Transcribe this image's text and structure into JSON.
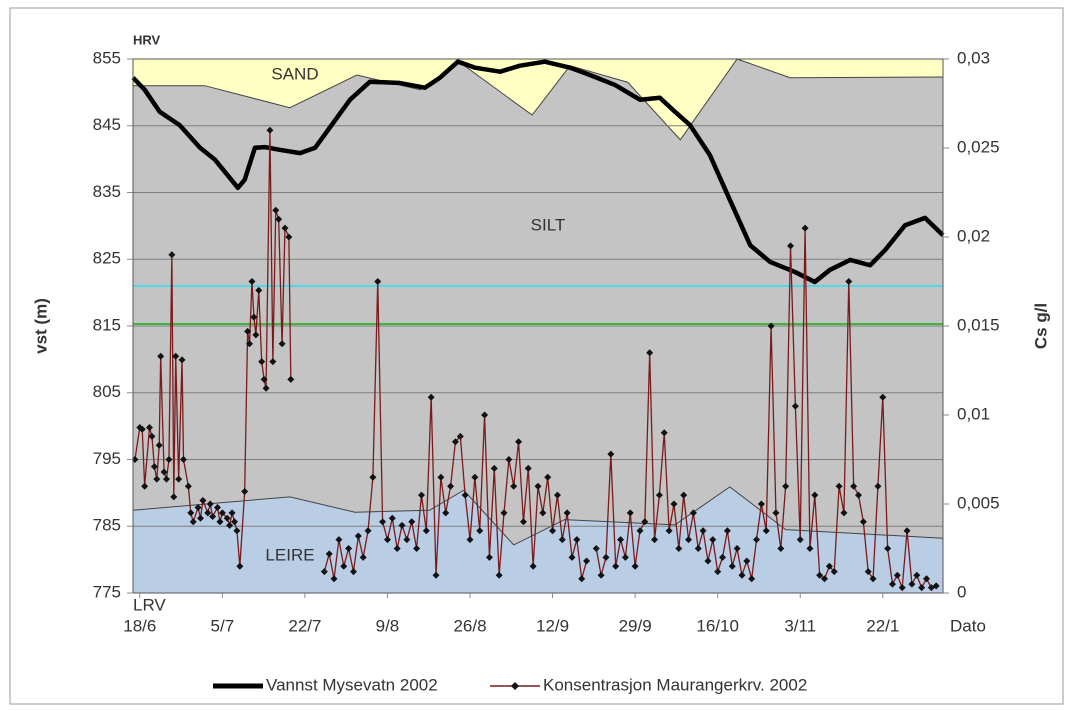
{
  "chart_data": {
    "type": "line",
    "ylabel": "vst (m)",
    "y2label": "Cs g/l",
    "xlabel": "Dato",
    "annotations": [
      "HRV",
      "LRV"
    ],
    "xlim": [
      -1.4,
      165.4
    ],
    "xticks": [
      {
        "value": 0,
        "label": "18/6"
      },
      {
        "value": 17,
        "label": "5/7"
      },
      {
        "value": 34,
        "label": "22/7"
      },
      {
        "value": 51,
        "label": "9/8"
      },
      {
        "value": 68,
        "label": "26/8"
      },
      {
        "value": 85,
        "label": "12/9"
      },
      {
        "value": 102,
        "label": "29/9"
      },
      {
        "value": 119,
        "label": "16/10"
      },
      {
        "value": 136,
        "label": "3/11"
      },
      {
        "value": 153,
        "label": "22/1"
      }
    ],
    "ylim": [
      775,
      855
    ],
    "yticks": [
      775,
      785,
      795,
      805,
      815,
      825,
      835,
      845,
      855
    ],
    "y2lim": [
      0,
      0.03
    ],
    "y2ticks": [
      0,
      {
        "value": 0.005,
        "label": "0,005"
      },
      {
        "value": 0.01,
        "label": "0,01"
      },
      {
        "value": 0.015,
        "label": "0,015"
      },
      {
        "value": 0.02,
        "label": "0,02"
      },
      {
        "value": 0.025,
        "label": "0,025"
      },
      {
        "value": 0.03,
        "label": "0,03"
      }
    ],
    "grid": true,
    "legend": "bottom",
    "zones": [
      {
        "name": "SAND",
        "color": "#ffffc4"
      },
      {
        "name": "SILT",
        "color": "#c4c4c4"
      },
      {
        "name": "LEIRE",
        "color": "#b9cde5"
      }
    ],
    "boundaries": [
      {
        "x": [
          -1.4,
          13.4,
          30.9,
          44.7,
          57.7,
          65.9,
          80.8,
          88.6,
          100.5,
          111.3,
          123,
          133.9,
          165.4
        ],
        "values": [
          851,
          851,
          847.7,
          852.6,
          850.4,
          854.5,
          846.6,
          854,
          851.5,
          842.9,
          855,
          852.2,
          852.3
        ]
      },
      {
        "x": [
          -1.4,
          30.9,
          44.3,
          59.7,
          66.7,
          77,
          87.5,
          110.2,
          121.5,
          133,
          165.4
        ],
        "values": [
          787.4,
          789.4,
          787.1,
          787.4,
          790.4,
          782.2,
          786,
          785.2,
          790.9,
          784.5,
          783.2
        ]
      }
    ],
    "reference_lines": [
      {
        "value": 821,
        "color": "#4fd8e8"
      },
      {
        "value": 815.3,
        "color": "#3cb83c"
      }
    ],
    "series": [
      {
        "name": "Vannst Mysevatn 2002",
        "color": "#000000",
        "axis": "y",
        "x": [
          -1.4,
          1.0,
          4.1,
          8.2,
          12.4,
          15.5,
          20.2,
          21.6,
          23.7,
          25.8,
          28.8,
          33.0,
          36.1,
          39.1,
          43.3,
          47.4,
          53.6,
          58.7,
          61.8,
          65.5,
          69.0,
          74.2,
          78.3,
          83.4,
          88.6,
          92.7,
          97.9,
          103.0,
          107.1,
          110.2,
          113.3,
          117.4,
          121.5,
          125.7,
          129.8,
          134.9,
          139.0,
          142.1,
          146.3,
          150.4,
          153.5,
          157.6,
          161.7,
          165.4
        ],
        "values": [
          852.2,
          850.4,
          847.1,
          845.1,
          841.7,
          839.9,
          835.7,
          836.9,
          841.7,
          841.8,
          841.4,
          840.9,
          841.7,
          844.7,
          848.9,
          851.6,
          851.4,
          850.7,
          852.2,
          854.6,
          853.7,
          853.1,
          854,
          854.6,
          853.7,
          852.6,
          851.1,
          848.9,
          849.2,
          847.1,
          845.1,
          840.6,
          833.9,
          827.1,
          824.6,
          823.1,
          821.6,
          823.4,
          824.9,
          824.1,
          826.4,
          830.1,
          831.2,
          828.6
        ]
      },
      {
        "name": "Konsentrasjon Maurangerkrv. 2002",
        "color": "#7a1a1a",
        "axis": "y2",
        "x": [
          -1,
          0,
          0.5,
          1,
          2,
          2.5,
          3,
          3.5,
          4,
          4.3,
          5,
          5.5,
          6,
          6.6,
          7,
          7.4,
          8,
          8.7,
          9,
          10,
          10.5,
          11,
          12,
          12.5,
          13,
          14,
          14.5,
          15,
          16,
          16.5,
          17,
          18,
          18.5,
          19,
          19.5,
          20,
          20.6,
          21.6,
          22.2,
          22.6,
          23.1,
          23.5,
          23.9,
          24.5,
          25.1,
          25.6,
          26,
          26.8,
          27.4,
          28,
          28.6,
          29.3,
          29.9,
          30.7,
          31.1,
          null,
          38,
          39,
          40,
          41,
          42,
          43,
          44,
          45,
          46,
          47,
          48,
          49,
          50,
          51,
          52,
          53,
          54,
          55,
          56,
          57,
          58,
          59,
          60,
          61,
          62,
          63,
          64,
          65,
          66,
          67,
          68,
          69,
          70,
          71,
          72,
          73,
          74,
          75,
          76,
          77,
          78,
          79,
          80,
          81,
          82,
          83,
          84,
          85,
          86,
          87,
          88,
          89,
          90,
          91,
          92,
          null,
          94,
          95,
          96,
          97,
          98,
          99,
          100,
          101,
          102,
          103,
          104,
          105,
          106,
          107,
          108,
          109,
          110,
          111,
          112,
          113,
          114,
          115,
          116,
          117,
          118,
          119,
          120,
          121,
          122,
          123,
          124,
          125,
          126,
          127,
          128,
          129,
          130,
          131,
          132,
          133,
          134,
          135,
          136,
          137,
          138,
          139,
          140,
          141,
          142,
          143,
          144,
          145,
          146,
          147,
          148,
          149,
          150,
          151,
          152,
          153,
          154,
          155,
          156,
          157,
          158,
          159,
          160,
          161,
          162,
          163,
          164
        ],
        "values": [
          0.0075,
          0.0093,
          0.0092,
          0.006,
          0.0093,
          0.0088,
          0.0071,
          0.0064,
          0.0083,
          0.0133,
          0.0068,
          0.0064,
          0.0075,
          0.019,
          0.0054,
          0.0133,
          0.0064,
          0.0131,
          0.0075,
          0.006,
          0.0045,
          0.004,
          0.0048,
          0.0042,
          0.0052,
          0.0045,
          0.005,
          0.0043,
          0.0048,
          0.004,
          0.0045,
          0.0042,
          0.0038,
          0.0045,
          0.004,
          0.0035,
          0.0015,
          0.0057,
          0.0147,
          0.014,
          0.0175,
          0.0155,
          0.0145,
          0.017,
          0.013,
          0.012,
          0.0115,
          0.026,
          0.013,
          0.0215,
          0.021,
          0.014,
          0.0205,
          0.02,
          0.012,
          null,
          0.0012,
          0.0022,
          0.0008,
          0.003,
          0.0015,
          0.0025,
          0.0012,
          0.0032,
          0.002,
          0.0035,
          0.0065,
          0.0175,
          0.004,
          0.003,
          0.0042,
          0.0025,
          0.0038,
          0.003,
          0.004,
          0.0025,
          0.0055,
          0.0035,
          0.011,
          0.001,
          0.0065,
          0.0045,
          0.006,
          0.0085,
          0.0088,
          0.0055,
          0.003,
          0.0065,
          0.0035,
          0.01,
          0.002,
          0.007,
          0.001,
          0.0045,
          0.0075,
          0.006,
          0.0085,
          0.004,
          0.007,
          0.0015,
          0.006,
          0.0045,
          0.0065,
          0.0035,
          0.0055,
          0.003,
          0.0045,
          0.002,
          0.003,
          0.0008,
          0.0018,
          null,
          0.0025,
          0.001,
          0.002,
          0.0078,
          0.0015,
          0.003,
          0.002,
          0.0045,
          0.0015,
          0.0035,
          0.004,
          0.0135,
          0.003,
          0.0055,
          0.009,
          0.0035,
          0.005,
          0.0025,
          0.0055,
          0.003,
          0.0045,
          0.0025,
          0.0035,
          0.0018,
          0.003,
          0.0012,
          0.002,
          0.0035,
          0.0015,
          0.0025,
          0.001,
          0.0018,
          0.0008,
          0.003,
          0.005,
          0.0035,
          0.015,
          0.0045,
          0.0025,
          0.006,
          0.0195,
          0.0105,
          0.003,
          0.0205,
          0.0025,
          0.0055,
          0.001,
          0.0008,
          0.0015,
          0.0012,
          0.006,
          0.0045,
          0.0175,
          0.006,
          0.0055,
          0.004,
          0.0012,
          0.0008,
          0.006,
          0.011,
          0.0025,
          0.0005,
          0.001,
          0.0003,
          0.0035,
          0.0005,
          0.001,
          0.0003,
          0.0008,
          0.0003,
          0.0004
        ]
      }
    ]
  }
}
